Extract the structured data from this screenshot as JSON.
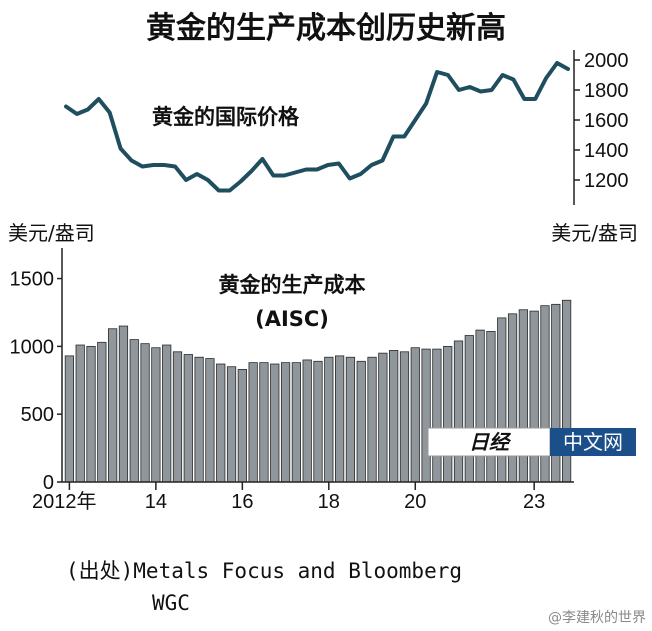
{
  "title": "黄金的生产成本创历史新高",
  "source": {
    "line1": "(出处)Metals Focus and Bloomberg",
    "line2": "WGC"
  },
  "watermark": {
    "logo_left": "日经",
    "logo_right": "中文网",
    "weibo": "@李建秋的世界"
  },
  "colors": {
    "price_line": "#1f4e5f",
    "bar_fill": "#8f979c",
    "bar_stroke": "#2a2a2a",
    "logo_bg": "#1b4f8a"
  },
  "chart_data": [
    {
      "type": "line",
      "title": "黄金的国际价格",
      "unit": "美元/盎司",
      "axis_side": "right",
      "yticks": [
        1200,
        1400,
        1600,
        1800,
        2000
      ],
      "ylim": [
        1100,
        2050
      ],
      "grid": false,
      "series": [
        {
          "values": [
            1690,
            1640,
            1670,
            1740,
            1650,
            1410,
            1330,
            1290,
            1300,
            1300,
            1290,
            1200,
            1240,
            1200,
            1130,
            1130,
            1190,
            1260,
            1340,
            1230,
            1230,
            1250,
            1270,
            1270,
            1300,
            1310,
            1210,
            1240,
            1300,
            1330,
            1490,
            1490,
            1600,
            1710,
            1920,
            1900,
            1800,
            1820,
            1790,
            1800,
            1900,
            1870,
            1740,
            1740,
            1880,
            1980,
            1940
          ]
        }
      ]
    },
    {
      "type": "bar",
      "title": "黄金的生产成本",
      "subtitle": "(AISC)",
      "unit": "美元/盎司",
      "ylim": [
        0,
        1600
      ],
      "yticks": [
        0,
        500,
        1000,
        1500
      ],
      "x_tick_labels": [
        {
          "index": 0,
          "label": "2012年"
        },
        {
          "index": 8,
          "label": "14"
        },
        {
          "index": 16,
          "label": "16"
        },
        {
          "index": 24,
          "label": "18"
        },
        {
          "index": 32,
          "label": "20"
        },
        {
          "index": 43,
          "label": "23"
        }
      ],
      "values": [
        930,
        1010,
        1000,
        1030,
        1130,
        1150,
        1050,
        1020,
        990,
        1010,
        960,
        940,
        920,
        910,
        870,
        850,
        830,
        880,
        880,
        870,
        880,
        880,
        900,
        890,
        920,
        930,
        920,
        890,
        920,
        950,
        970,
        960,
        990,
        980,
        980,
        1000,
        1040,
        1080,
        1120,
        1110,
        1210,
        1240,
        1270,
        1260,
        1300,
        1310,
        1340
      ]
    }
  ]
}
